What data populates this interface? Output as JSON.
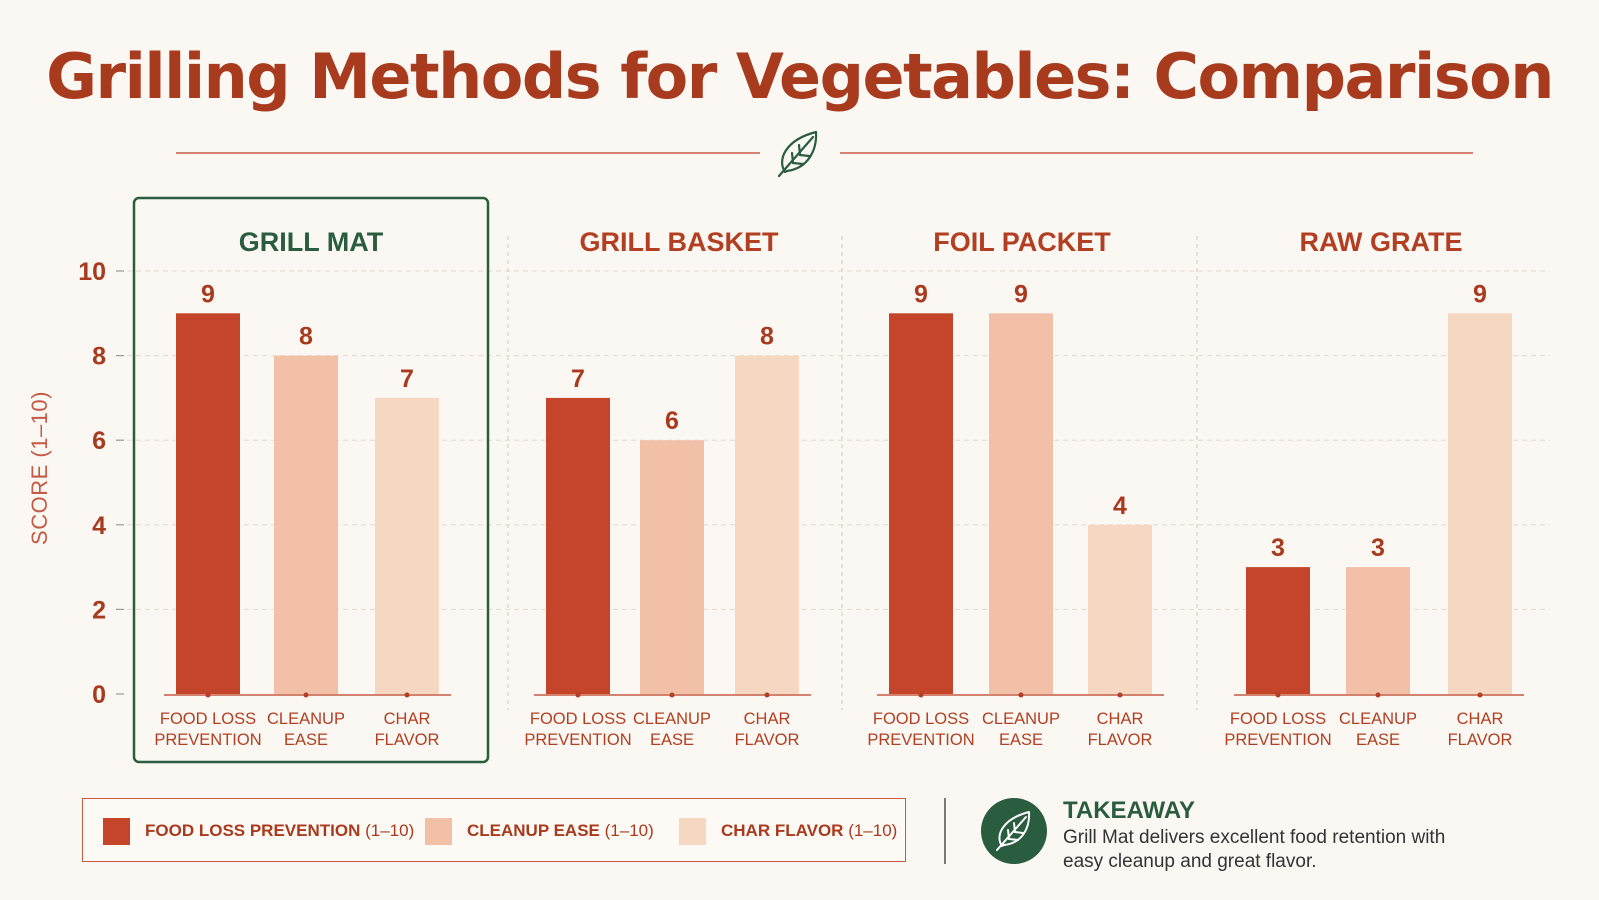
{
  "title": "Grilling Methods for Vegetables: Comparison",
  "divider_icon": "leaf-icon",
  "chart_data": {
    "type": "bar",
    "ylabel": "SCORE (1–10)",
    "ylim": [
      0,
      10
    ],
    "yticks": [
      0,
      2,
      4,
      6,
      8,
      10
    ],
    "grid": true,
    "highlighted_group": "GRILL MAT",
    "metrics": [
      {
        "key": "food_loss",
        "label_lines": [
          "FOOD LOSS",
          "PREVENTION"
        ],
        "color": "#c4452a"
      },
      {
        "key": "cleanup",
        "label_lines": [
          "CLEANUP",
          "EASE"
        ],
        "color": "#f2bfa7"
      },
      {
        "key": "char",
        "label_lines": [
          "CHAR",
          "FLAVOR"
        ],
        "color": "#f5d7c2"
      }
    ],
    "groups": [
      {
        "name": "GRILL MAT",
        "values": [
          9,
          8,
          7
        ]
      },
      {
        "name": "GRILL BASKET",
        "values": [
          7,
          6,
          8
        ]
      },
      {
        "name": "FOIL PACKET",
        "values": [
          9,
          9,
          4
        ]
      },
      {
        "name": "RAW GRATE",
        "values": [
          3,
          3,
          9
        ]
      }
    ],
    "legend": [
      {
        "label": "FOOD LOSS PREVENTION",
        "range": "(1–10)",
        "color": "#c4452a"
      },
      {
        "label": "CLEANUP EASE",
        "range": "(1–10)",
        "color": "#f2bfa7"
      },
      {
        "label": "CHAR FLAVOR",
        "range": "(1–10)",
        "color": "#f5d7c2"
      }
    ],
    "legend_position": "bottom-left"
  },
  "takeaway": {
    "icon": "leaf-icon",
    "title": "TAKEAWAY",
    "text": "Grill Mat delivers excellent food retention with easy cleanup and great flavor."
  }
}
